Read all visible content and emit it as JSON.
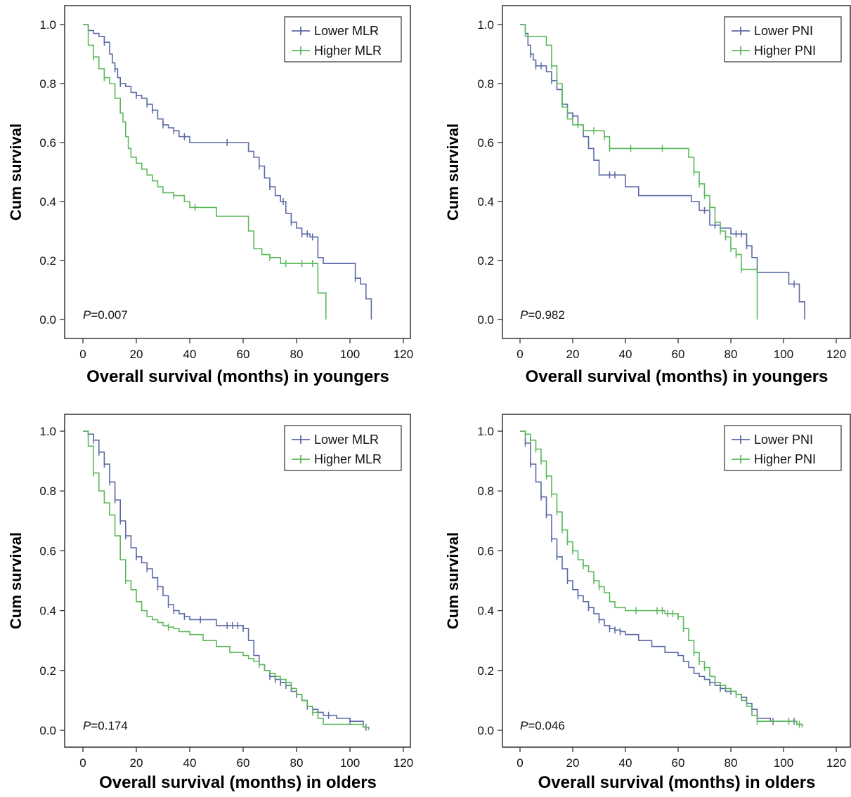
{
  "chart_data": [
    {
      "type": "line",
      "subtype": "kaplan-meier",
      "xlabel": "Overall survival (months) in youngers",
      "ylabel": "Cum survival",
      "xlim": [
        0,
        120
      ],
      "ylim": [
        0,
        1
      ],
      "xticks": [
        0,
        20,
        40,
        60,
        80,
        100,
        120
      ],
      "yticks": [
        "0.0",
        "0.2",
        "0.4",
        "0.6",
        "0.8",
        "1.0"
      ],
      "legend_position": "top-right",
      "annotation": {
        "p_label": "P",
        "p_value": "=0.007"
      },
      "series": [
        {
          "name": "Lower MLR",
          "color": "#5b6aa6",
          "x": [
            0,
            2,
            4,
            6,
            8,
            10,
            11,
            12,
            13,
            14,
            16,
            18,
            20,
            22,
            24,
            26,
            28,
            30,
            32,
            34,
            36,
            38,
            40,
            45,
            50,
            55,
            60,
            62,
            64,
            66,
            68,
            70,
            72,
            74,
            76,
            78,
            80,
            82,
            85,
            88,
            90,
            95,
            100,
            102,
            104,
            106,
            108
          ],
          "y": [
            1.0,
            0.98,
            0.97,
            0.96,
            0.94,
            0.9,
            0.87,
            0.85,
            0.82,
            0.8,
            0.79,
            0.77,
            0.76,
            0.75,
            0.73,
            0.71,
            0.68,
            0.66,
            0.65,
            0.64,
            0.62,
            0.62,
            0.6,
            0.6,
            0.6,
            0.6,
            0.6,
            0.57,
            0.55,
            0.52,
            0.48,
            0.45,
            0.42,
            0.4,
            0.36,
            0.33,
            0.31,
            0.29,
            0.28,
            0.21,
            0.19,
            0.19,
            0.19,
            0.14,
            0.12,
            0.07,
            0.0
          ],
          "censor_x": [
            8,
            12,
            14,
            20,
            24,
            26,
            30,
            34,
            38,
            54,
            66,
            70,
            75,
            78,
            82,
            84,
            86,
            102
          ]
        },
        {
          "name": "Higher MLR",
          "color": "#5cb85c",
          "x": [
            0,
            2,
            4,
            6,
            8,
            10,
            12,
            14,
            15,
            16,
            17,
            18,
            20,
            22,
            24,
            26,
            28,
            30,
            34,
            38,
            40,
            45,
            50,
            55,
            60,
            62,
            64,
            67,
            70,
            74,
            78,
            82,
            86,
            88,
            91
          ],
          "y": [
            1.0,
            0.93,
            0.89,
            0.85,
            0.82,
            0.8,
            0.75,
            0.7,
            0.67,
            0.62,
            0.58,
            0.55,
            0.53,
            0.51,
            0.49,
            0.47,
            0.45,
            0.43,
            0.42,
            0.4,
            0.38,
            0.38,
            0.35,
            0.35,
            0.35,
            0.3,
            0.24,
            0.22,
            0.21,
            0.19,
            0.19,
            0.19,
            0.19,
            0.09,
            0.0
          ],
          "censor_x": [
            4,
            8,
            34,
            42,
            70,
            76,
            82,
            86
          ]
        }
      ]
    },
    {
      "type": "line",
      "subtype": "kaplan-meier",
      "xlabel": "Overall survival (months) in youngers",
      "ylabel": "Cum survival",
      "xlim": [
        0,
        120
      ],
      "ylim": [
        0,
        1
      ],
      "xticks": [
        0,
        20,
        40,
        60,
        80,
        100,
        120
      ],
      "yticks": [
        "0.0",
        "0.2",
        "0.4",
        "0.6",
        "0.8",
        "1.0"
      ],
      "legend_position": "top-right",
      "annotation": {
        "p_label": "P",
        "p_value": "=0.982"
      },
      "series": [
        {
          "name": "Lower PNI",
          "color": "#5b6aa6",
          "x": [
            0,
            2,
            3,
            4,
            5,
            6,
            8,
            10,
            12,
            14,
            16,
            18,
            20,
            22,
            24,
            26,
            28,
            30,
            32,
            34,
            36,
            40,
            45,
            50,
            55,
            60,
            62,
            65,
            68,
            72,
            76,
            80,
            82,
            84,
            86,
            88,
            90,
            95,
            100,
            102,
            104,
            106,
            108
          ],
          "y": [
            1.0,
            0.97,
            0.93,
            0.9,
            0.88,
            0.86,
            0.86,
            0.84,
            0.81,
            0.78,
            0.73,
            0.7,
            0.69,
            0.66,
            0.62,
            0.58,
            0.54,
            0.49,
            0.49,
            0.49,
            0.49,
            0.45,
            0.42,
            0.42,
            0.42,
            0.42,
            0.42,
            0.4,
            0.37,
            0.32,
            0.31,
            0.29,
            0.29,
            0.29,
            0.25,
            0.21,
            0.16,
            0.16,
            0.16,
            0.12,
            0.12,
            0.06,
            0.0
          ],
          "censor_x": [
            4,
            6,
            8,
            12,
            16,
            18,
            20,
            34,
            36,
            70,
            74,
            82,
            84,
            86,
            104
          ]
        },
        {
          "name": "Higher PNI",
          "color": "#5cb85c",
          "x": [
            0,
            2,
            4,
            6,
            8,
            10,
            12,
            14,
            16,
            18,
            20,
            22,
            24,
            26,
            28,
            30,
            32,
            34,
            36,
            40,
            45,
            50,
            55,
            60,
            62,
            64,
            66,
            68,
            70,
            72,
            74,
            76,
            78,
            80,
            82,
            84,
            86,
            88,
            90
          ],
          "y": [
            1.0,
            0.96,
            0.96,
            0.96,
            0.96,
            0.93,
            0.86,
            0.8,
            0.72,
            0.68,
            0.66,
            0.66,
            0.64,
            0.64,
            0.64,
            0.64,
            0.62,
            0.58,
            0.58,
            0.58,
            0.58,
            0.58,
            0.58,
            0.58,
            0.58,
            0.55,
            0.5,
            0.46,
            0.42,
            0.38,
            0.33,
            0.3,
            0.28,
            0.24,
            0.22,
            0.17,
            0.17,
            0.17,
            0.0
          ],
          "censor_x": [
            12,
            22,
            28,
            32,
            34,
            42,
            54,
            66,
            68,
            70,
            72,
            76,
            78,
            80,
            82,
            84
          ]
        }
      ]
    },
    {
      "type": "line",
      "subtype": "kaplan-meier",
      "xlabel": "Overall survival (months) in olders",
      "ylabel": "Cum survival",
      "xlim": [
        0,
        120
      ],
      "ylim": [
        0,
        1
      ],
      "xticks": [
        0,
        20,
        40,
        60,
        80,
        100,
        120
      ],
      "yticks": [
        "0.0",
        "0.2",
        "0.4",
        "0.6",
        "0.8",
        "1.0"
      ],
      "legend_position": "top-right",
      "annotation": {
        "p_label": "P",
        "p_value": "=0.174"
      },
      "series": [
        {
          "name": "Lower MLR",
          "color": "#5b6aa6",
          "x": [
            0,
            2,
            4,
            6,
            8,
            10,
            12,
            14,
            16,
            18,
            20,
            22,
            24,
            26,
            28,
            30,
            32,
            34,
            36,
            38,
            40,
            45,
            50,
            55,
            60,
            62,
            64,
            66,
            68,
            70,
            72,
            74,
            76,
            78,
            80,
            82,
            84,
            86,
            88,
            90,
            95,
            100,
            105,
            107
          ],
          "y": [
            1.0,
            0.99,
            0.97,
            0.93,
            0.89,
            0.83,
            0.77,
            0.7,
            0.65,
            0.61,
            0.58,
            0.56,
            0.54,
            0.51,
            0.48,
            0.45,
            0.42,
            0.4,
            0.39,
            0.38,
            0.37,
            0.37,
            0.35,
            0.35,
            0.34,
            0.3,
            0.25,
            0.22,
            0.2,
            0.18,
            0.17,
            0.16,
            0.15,
            0.13,
            0.12,
            0.1,
            0.08,
            0.07,
            0.06,
            0.05,
            0.04,
            0.03,
            0.01,
            0.005
          ],
          "censor_x": [
            2,
            4,
            6,
            8,
            10,
            12,
            14,
            16,
            20,
            24,
            28,
            32,
            34,
            38,
            44,
            54,
            56,
            58,
            60,
            70,
            72,
            74,
            76,
            80,
            84,
            88,
            92,
            100,
            106
          ]
        },
        {
          "name": "Higher MLR",
          "color": "#5cb85c",
          "x": [
            0,
            2,
            4,
            6,
            8,
            10,
            12,
            14,
            16,
            18,
            20,
            22,
            24,
            26,
            28,
            30,
            32,
            34,
            36,
            40,
            45,
            50,
            55,
            60,
            62,
            64,
            66,
            68,
            70,
            72,
            74,
            76,
            78,
            80,
            82,
            84,
            86,
            88,
            90,
            95,
            100,
            105,
            107
          ],
          "y": [
            1.0,
            0.95,
            0.86,
            0.8,
            0.76,
            0.72,
            0.65,
            0.57,
            0.5,
            0.47,
            0.43,
            0.4,
            0.38,
            0.37,
            0.36,
            0.35,
            0.345,
            0.34,
            0.33,
            0.32,
            0.3,
            0.28,
            0.26,
            0.25,
            0.24,
            0.23,
            0.22,
            0.2,
            0.19,
            0.18,
            0.17,
            0.16,
            0.14,
            0.12,
            0.1,
            0.08,
            0.06,
            0.04,
            0.02,
            0.02,
            0.02,
            0.01,
            0.0
          ],
          "censor_x": [
            4,
            16,
            32,
            66,
            72,
            76,
            86
          ]
        }
      ]
    },
    {
      "type": "line",
      "subtype": "kaplan-meier",
      "xlabel": "Overall survival (months) in olders",
      "ylabel": "Cum survival",
      "xlim": [
        0,
        120
      ],
      "ylim": [
        0,
        1
      ],
      "xticks": [
        0,
        20,
        40,
        60,
        80,
        100,
        120
      ],
      "yticks": [
        "0.0",
        "0.2",
        "0.4",
        "0.6",
        "0.8",
        "1.0"
      ],
      "legend_position": "top-right",
      "annotation": {
        "p_label": "P",
        "p_value": "=0.046"
      },
      "series": [
        {
          "name": "Lower PNI",
          "color": "#5b6aa6",
          "x": [
            0,
            2,
            4,
            6,
            8,
            10,
            12,
            14,
            16,
            18,
            20,
            22,
            24,
            26,
            28,
            30,
            32,
            34,
            36,
            38,
            40,
            45,
            50,
            55,
            60,
            62,
            64,
            66,
            68,
            70,
            72,
            74,
            76,
            78,
            80,
            82,
            84,
            86,
            88,
            90,
            95,
            100,
            105,
            107
          ],
          "y": [
            1.0,
            0.96,
            0.89,
            0.83,
            0.78,
            0.72,
            0.64,
            0.58,
            0.54,
            0.5,
            0.47,
            0.45,
            0.43,
            0.41,
            0.39,
            0.37,
            0.35,
            0.34,
            0.335,
            0.33,
            0.32,
            0.3,
            0.28,
            0.26,
            0.25,
            0.23,
            0.21,
            0.19,
            0.18,
            0.17,
            0.16,
            0.15,
            0.14,
            0.13,
            0.13,
            0.12,
            0.11,
            0.09,
            0.07,
            0.04,
            0.03,
            0.03,
            0.02,
            0.01
          ],
          "censor_x": [
            2,
            4,
            8,
            10,
            12,
            14,
            18,
            22,
            26,
            30,
            34,
            36,
            38,
            72,
            76,
            80,
            84,
            88,
            96,
            104
          ]
        },
        {
          "name": "Higher PNI",
          "color": "#5cb85c",
          "x": [
            0,
            2,
            4,
            6,
            8,
            10,
            12,
            14,
            16,
            18,
            20,
            22,
            24,
            26,
            28,
            30,
            32,
            34,
            36,
            38,
            40,
            45,
            50,
            55,
            60,
            62,
            64,
            66,
            68,
            70,
            72,
            74,
            76,
            78,
            80,
            82,
            84,
            86,
            88,
            90,
            95,
            100,
            105,
            107
          ],
          "y": [
            1.0,
            0.99,
            0.97,
            0.94,
            0.9,
            0.85,
            0.79,
            0.73,
            0.67,
            0.63,
            0.6,
            0.57,
            0.55,
            0.53,
            0.5,
            0.48,
            0.46,
            0.43,
            0.41,
            0.41,
            0.4,
            0.4,
            0.4,
            0.39,
            0.38,
            0.34,
            0.3,
            0.26,
            0.23,
            0.21,
            0.18,
            0.16,
            0.15,
            0.14,
            0.13,
            0.12,
            0.1,
            0.08,
            0.05,
            0.03,
            0.03,
            0.03,
            0.02,
            0.01
          ],
          "censor_x": [
            2,
            4,
            6,
            8,
            10,
            12,
            14,
            16,
            18,
            20,
            24,
            28,
            30,
            44,
            52,
            54,
            56,
            58,
            60,
            62,
            66,
            68,
            70,
            82,
            90,
            102,
            106
          ]
        }
      ]
    }
  ]
}
